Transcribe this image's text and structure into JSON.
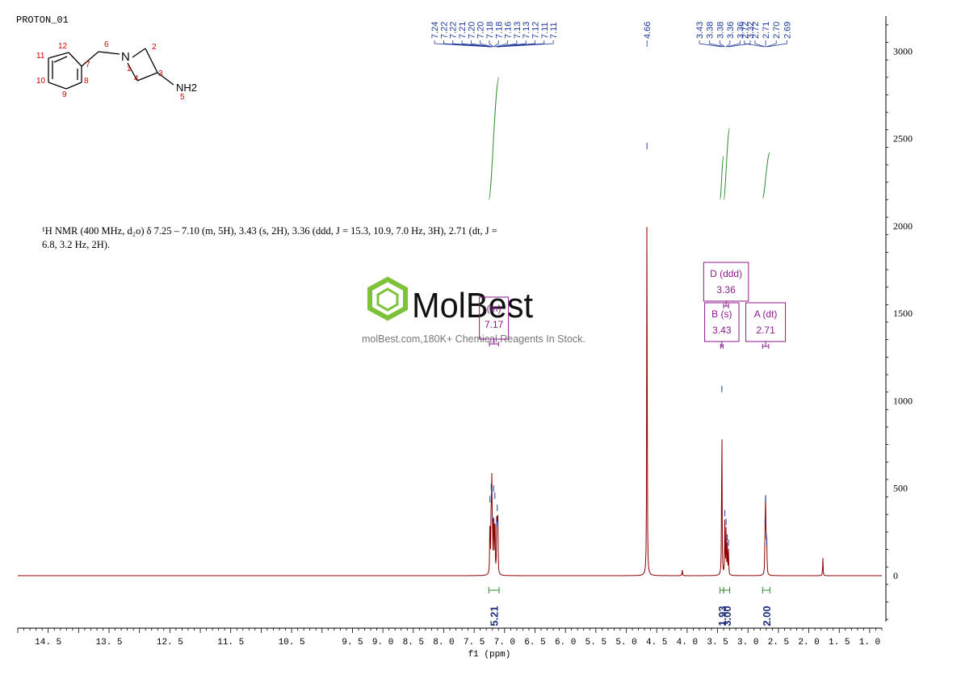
{
  "sample_name": "PROTON_01",
  "nmr_description": "¹H NMR (400 MHz, d₂o) δ 7.25 – 7.10 (m, 5H), 3.43 (s, 2H), 3.36 (ddd, J = 15.3, 10.9, 7.0 Hz, 3H), 2.71 (dt, J = 6.8, 3.2 Hz, 2H).",
  "watermark": {
    "brand": "MolBest",
    "site": "molBest.com,180K+ Chemical Reagents In Stock."
  },
  "structure": {
    "atom_numbers": [
      "1",
      "2",
      "3",
      "4",
      "5",
      "6",
      "7",
      "8",
      "9",
      "10",
      "11",
      "12"
    ],
    "atoms": [
      "N",
      "NH2"
    ]
  },
  "colors": {
    "spectrum": "#8b0000",
    "peak_marker": "#1f3a9a",
    "integral": "#2e8b2e",
    "multiplet_box": "#8b1a8b",
    "atom_number": "#d40000",
    "logo_green": "#7ec23a"
  },
  "chart_data": {
    "type": "line",
    "xlabel": "f1 (ppm)",
    "xlim": [
      15.0,
      0.8
    ],
    "ylim": [
      -300,
      3200
    ],
    "x_ticks": [
      "14.5",
      "13.5",
      "12.5",
      "11.5",
      "10.5",
      "9.5",
      "9.0",
      "8.5",
      "8.0",
      "7.5",
      "7.0",
      "6.5",
      "6.0",
      "5.5",
      "5.0",
      "4.5",
      "4.0",
      "3.5",
      "3.0",
      "2.5",
      "2.0",
      "1.5",
      "1.0"
    ],
    "y_ticks": [
      "3000",
      "2500",
      "2000",
      "1500",
      "1000",
      "500",
      "0"
    ],
    "peaks": [
      {
        "ppm": 7.24,
        "height": 410
      },
      {
        "ppm": 7.22,
        "height": 480
      },
      {
        "ppm": 7.21,
        "height": 460
      },
      {
        "ppm": 7.2,
        "height": 300
      },
      {
        "ppm": 7.18,
        "height": 470
      },
      {
        "ppm": 7.16,
        "height": 430
      },
      {
        "ppm": 7.13,
        "height": 270
      },
      {
        "ppm": 7.12,
        "height": 360
      },
      {
        "ppm": 7.11,
        "height": 280
      },
      {
        "ppm": 4.66,
        "height": 2430
      },
      {
        "ppm": 4.08,
        "height": 40
      },
      {
        "ppm": 3.43,
        "height": 1040
      },
      {
        "ppm": 3.38,
        "height": 330
      },
      {
        "ppm": 3.36,
        "height": 280
      },
      {
        "ppm": 3.34,
        "height": 190
      },
      {
        "ppm": 3.32,
        "height": 160
      },
      {
        "ppm": 2.72,
        "height": 280
      },
      {
        "ppm": 2.71,
        "height": 410
      },
      {
        "ppm": 2.7,
        "height": 200
      },
      {
        "ppm": 2.69,
        "height": 160
      },
      {
        "ppm": 1.77,
        "height": 110
      }
    ],
    "peak_labels": [
      {
        "label": "7.24",
        "ppm": 7.24
      },
      {
        "label": "7.22",
        "ppm": 7.22
      },
      {
        "label": "7.22",
        "ppm": 7.22
      },
      {
        "label": "7.21",
        "ppm": 7.21
      },
      {
        "label": "7.20",
        "ppm": 7.2
      },
      {
        "label": "7.20",
        "ppm": 7.2
      },
      {
        "label": "7.18",
        "ppm": 7.18
      },
      {
        "label": "7.18",
        "ppm": 7.18
      },
      {
        "label": "7.16",
        "ppm": 7.16
      },
      {
        "label": "7.13",
        "ppm": 7.13
      },
      {
        "label": "7.13",
        "ppm": 7.13
      },
      {
        "label": "7.12",
        "ppm": 7.12
      },
      {
        "label": "7.11",
        "ppm": 7.11
      },
      {
        "label": "7.11",
        "ppm": 7.11
      },
      {
        "label": "4.66",
        "ppm": 4.66
      },
      {
        "label": "3.43",
        "ppm": 3.43
      },
      {
        "label": "3.38",
        "ppm": 3.38
      },
      {
        "label": "3.38",
        "ppm": 3.38
      },
      {
        "label": "3.36",
        "ppm": 3.36
      },
      {
        "label": "3.36",
        "ppm": 3.36
      },
      {
        "label": "3.32",
        "ppm": 3.32
      },
      {
        "label": "2.72",
        "ppm": 2.72
      },
      {
        "label": "2.72",
        "ppm": 2.72
      },
      {
        "label": "2.71",
        "ppm": 2.71
      },
      {
        "label": "2.70",
        "ppm": 2.7
      },
      {
        "label": "2.69",
        "ppm": 2.69
      }
    ],
    "integrals": [
      {
        "from": 7.26,
        "to": 7.09,
        "value": "5.21",
        "curve_y": [
          2150,
          2850
        ]
      },
      {
        "from": 3.46,
        "to": 3.4,
        "value": "1.93",
        "curve_y": [
          2150,
          2400
        ]
      },
      {
        "from": 3.4,
        "to": 3.3,
        "value": "3.00",
        "curve_y": [
          2150,
          2560
        ]
      },
      {
        "from": 2.76,
        "to": 2.64,
        "value": "2.00",
        "curve_y": [
          2160,
          2420
        ]
      }
    ],
    "multiplets": [
      {
        "name": "(m)",
        "shift": "7.17",
        "from": 7.25,
        "to": 7.1
      },
      {
        "name": "D (ddd)",
        "shift": "3.36",
        "from": 3.4,
        "to": 3.32
      },
      {
        "name": "B (s)",
        "shift": "3.43",
        "from": 3.45,
        "to": 3.41
      },
      {
        "name": "A (dt)",
        "shift": "2.71",
        "from": 2.76,
        "to": 2.66
      }
    ]
  }
}
